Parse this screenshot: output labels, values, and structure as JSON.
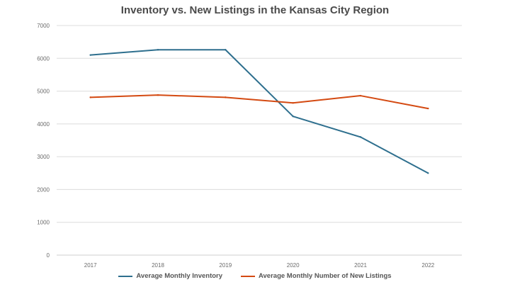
{
  "chart_data": {
    "type": "line",
    "title": "Inventory vs. New Listings in the Kansas City Region",
    "categories": [
      "2017",
      "2018",
      "2019",
      "2020",
      "2021",
      "2022"
    ],
    "ylim": [
      0,
      7000
    ],
    "yticks": [
      0,
      1000,
      2000,
      3000,
      4000,
      5000,
      6000,
      7000
    ],
    "grid": true,
    "legend_position": "bottom",
    "series": [
      {
        "name": "Average Monthly Inventory",
        "color": "#2e6f8e",
        "values": [
          6100,
          6260,
          6260,
          4230,
          3600,
          2500
        ]
      },
      {
        "name": "Average Monthly Number of New Listings",
        "color": "#d44a12",
        "values": [
          4810,
          4880,
          4810,
          4640,
          4860,
          4470
        ]
      }
    ]
  }
}
